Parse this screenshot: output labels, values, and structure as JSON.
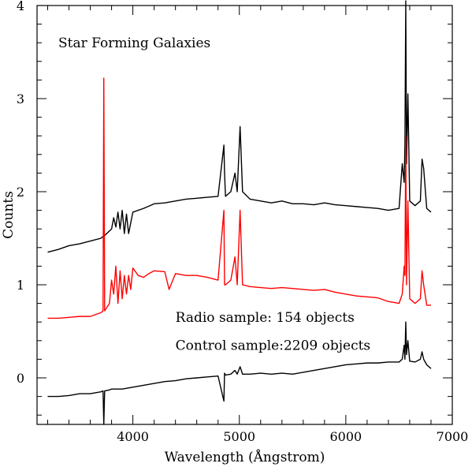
{
  "chart_data": {
    "type": "line",
    "title": "",
    "xlabel": "Wavelength (Ångstrom)",
    "ylabel": "Counts",
    "xlim": [
      3100,
      7000
    ],
    "ylim": [
      -0.5,
      4
    ],
    "grid": false,
    "legend": "none",
    "xticks": [
      4000,
      5000,
      6000,
      7000
    ],
    "xtick_labels": [
      "4000",
      "5000",
      "6000",
      "7000"
    ],
    "yticks": [
      0,
      1,
      2,
      3,
      4
    ],
    "ytick_labels": [
      "0",
      "1",
      "2",
      "3",
      "4"
    ],
    "annotations": [
      {
        "text": "Star Forming Galaxies",
        "x": 3300,
        "y": 3.55
      },
      {
        "text": "Radio sample: 154 objects",
        "x": 4400,
        "y": 0.6
      },
      {
        "text": "Control sample:2209 objects",
        "x": 4400,
        "y": 0.3
      }
    ],
    "series": [
      {
        "color": "#000000",
        "x": [
          3200,
          3300,
          3400,
          3500,
          3600,
          3700,
          3720,
          3727,
          3735,
          3800,
          3820,
          3840,
          3860,
          3880,
          3900,
          3920,
          3940,
          3960,
          4000,
          4100,
          4200,
          4300,
          4400,
          4500,
          4600,
          4700,
          4800,
          4855,
          4861,
          4870,
          4920,
          4959,
          4980,
          5007,
          5030,
          5100,
          5200,
          5300,
          5400,
          5500,
          5600,
          5700,
          5800,
          5900,
          6000,
          6100,
          6200,
          6300,
          6400,
          6500,
          6530,
          6548,
          6555,
          6563,
          6570,
          6583,
          6600,
          6650,
          6700,
          6716,
          6731,
          6760,
          6800
        ],
        "y": [
          1.35,
          1.38,
          1.42,
          1.44,
          1.47,
          1.5,
          1.52,
          1.52,
          1.53,
          1.6,
          1.72,
          1.62,
          1.78,
          1.6,
          1.8,
          1.55,
          1.76,
          1.55,
          1.78,
          1.82,
          1.87,
          1.88,
          1.9,
          1.92,
          1.93,
          1.94,
          1.95,
          2.5,
          2.2,
          1.95,
          2.0,
          2.2,
          2.0,
          2.7,
          2.0,
          1.92,
          1.9,
          1.88,
          1.9,
          1.87,
          1.87,
          1.86,
          1.88,
          1.86,
          1.85,
          1.84,
          1.83,
          1.82,
          1.8,
          1.82,
          2.3,
          2.1,
          2.5,
          4.05,
          2.3,
          3.05,
          1.9,
          1.85,
          1.9,
          2.35,
          2.25,
          1.82,
          1.78
        ]
      },
      {
        "color": "#ff0000",
        "x": [
          3200,
          3300,
          3400,
          3500,
          3600,
          3650,
          3700,
          3720,
          3727,
          3735,
          3780,
          3800,
          3820,
          3840,
          3860,
          3880,
          3900,
          3920,
          3940,
          3960,
          3980,
          4000,
          4050,
          4100,
          4150,
          4200,
          4300,
          4340,
          4400,
          4500,
          4600,
          4700,
          4800,
          4855,
          4861,
          4870,
          4920,
          4959,
          4980,
          5007,
          5030,
          5100,
          5200,
          5300,
          5400,
          5500,
          5600,
          5700,
          5800,
          5900,
          6000,
          6100,
          6200,
          6300,
          6400,
          6500,
          6530,
          6548,
          6555,
          6563,
          6570,
          6583,
          6600,
          6650,
          6700,
          6716,
          6731,
          6760,
          6800
        ],
        "y": [
          0.64,
          0.64,
          0.65,
          0.66,
          0.66,
          0.68,
          0.7,
          0.72,
          3.22,
          0.72,
          0.8,
          1.05,
          0.9,
          1.2,
          0.8,
          1.15,
          0.85,
          1.1,
          0.9,
          1.1,
          0.95,
          1.18,
          1.1,
          1.08,
          1.12,
          1.15,
          1.14,
          0.95,
          1.12,
          1.1,
          1.1,
          1.08,
          1.05,
          1.8,
          1.0,
          1.0,
          1.05,
          1.3,
          1.0,
          1.8,
          1.0,
          0.98,
          0.97,
          0.96,
          0.97,
          0.96,
          0.95,
          0.94,
          0.95,
          0.92,
          0.9,
          0.88,
          0.87,
          0.86,
          0.82,
          0.8,
          0.9,
          1.2,
          1.1,
          2.6,
          1.0,
          1.9,
          0.85,
          0.8,
          0.85,
          1.15,
          1.0,
          0.78,
          0.78
        ]
      },
      {
        "color": "#000000",
        "x": [
          3200,
          3300,
          3400,
          3500,
          3600,
          3700,
          3720,
          3727,
          3735,
          3780,
          3800,
          3900,
          4000,
          4100,
          4200,
          4300,
          4400,
          4500,
          4600,
          4700,
          4800,
          4855,
          4861,
          4870,
          4920,
          4959,
          4980,
          5007,
          5030,
          5100,
          5200,
          5300,
          5400,
          5500,
          5600,
          5700,
          5800,
          5900,
          6000,
          6100,
          6200,
          6300,
          6400,
          6500,
          6530,
          6548,
          6555,
          6563,
          6570,
          6583,
          6600,
          6650,
          6700,
          6716,
          6731,
          6760,
          6800
        ],
        "y": [
          -0.2,
          -0.2,
          -0.19,
          -0.17,
          -0.17,
          -0.15,
          -0.14,
          -0.5,
          -0.14,
          -0.13,
          -0.12,
          -0.12,
          -0.1,
          -0.08,
          -0.06,
          -0.04,
          -0.03,
          -0.01,
          0.0,
          0.01,
          0.02,
          -0.25,
          0.05,
          0.03,
          0.04,
          0.08,
          0.04,
          0.12,
          0.04,
          0.04,
          0.05,
          0.04,
          0.05,
          0.04,
          0.06,
          0.08,
          0.1,
          0.12,
          0.14,
          0.15,
          0.16,
          0.16,
          0.17,
          0.17,
          0.2,
          0.35,
          0.2,
          0.6,
          0.25,
          0.4,
          0.18,
          0.17,
          0.2,
          0.28,
          0.2,
          0.14,
          0.1
        ]
      }
    ]
  }
}
